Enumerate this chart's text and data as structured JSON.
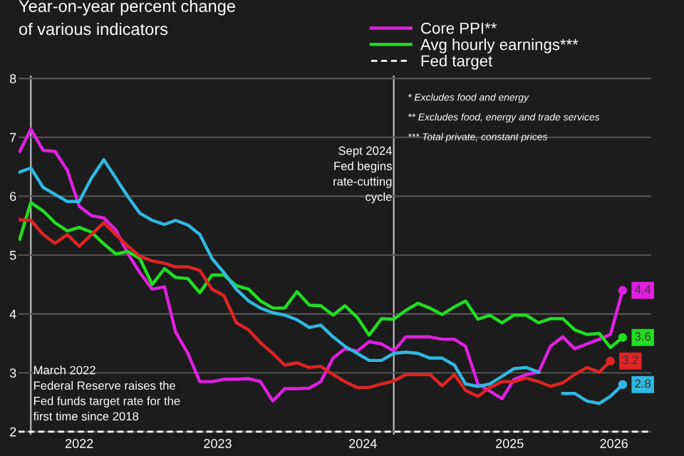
{
  "chart_data": {
    "type": "line",
    "title": "Year-on-year percent change\nof various indicators",
    "x": [
      "2022-02",
      "2022-03",
      "2022-04",
      "2022-05",
      "2022-06",
      "2022-07",
      "2022-08",
      "2022-09",
      "2022-10",
      "2022-11",
      "2022-12",
      "2023-01",
      "2023-02",
      "2023-03",
      "2023-04",
      "2023-05",
      "2023-06",
      "2023-07",
      "2023-08",
      "2023-09",
      "2023-10",
      "2023-11",
      "2023-12",
      "2024-01",
      "2024-02",
      "2024-03",
      "2024-04",
      "2024-05",
      "2024-06",
      "2024-07",
      "2024-08",
      "2024-09",
      "2024-10",
      "2024-11",
      "2024-12",
      "2025-01",
      "2025-02",
      "2025-03",
      "2025-04",
      "2025-05",
      "2025-06",
      "2025-07",
      "2025-08",
      "2025-09",
      "2025-10",
      "2025-11",
      "2025-12",
      "2026-01",
      "2026-02",
      "2026-03",
      "2026-04"
    ],
    "series": [
      {
        "name": "Core PPI**",
        "color": "#e020e0",
        "x": [
          "2022-02",
          "2022-03",
          "2022-04",
          "2022-05",
          "2022-06",
          "2022-07",
          "2022-08",
          "2022-09",
          "2022-10",
          "2022-11",
          "2022-12",
          "2023-01",
          "2023-02",
          "2023-03",
          "2023-04",
          "2023-05",
          "2023-06",
          "2023-07",
          "2023-08",
          "2023-09",
          "2023-10",
          "2023-11",
          "2023-12",
          "2024-01",
          "2024-02",
          "2024-03",
          "2024-04",
          "2024-05",
          "2024-06",
          "2024-07",
          "2024-08",
          "2024-09",
          "2024-10",
          "2024-12",
          "2025-01",
          "2025-02",
          "2025-03",
          "2025-04",
          "2025-05",
          "2025-06",
          "2025-07",
          "2025-08",
          "2025-09",
          "2025-10",
          "2025-11",
          "2025-12",
          "2026-01",
          "2026-02",
          "2026-03",
          "2026-04"
        ],
        "values": [
          6.76,
          7.14,
          6.78,
          6.76,
          6.44,
          5.83,
          5.67,
          5.63,
          5.43,
          5.02,
          4.7,
          4.42,
          4.46,
          3.69,
          3.33,
          2.85,
          2.85,
          2.89,
          2.89,
          2.9,
          2.85,
          2.52,
          2.73,
          2.73,
          2.74,
          2.85,
          3.25,
          3.41,
          3.37,
          3.53,
          3.49,
          3.37,
          3.61,
          3.61,
          3.57,
          3.57,
          3.45,
          2.81,
          2.69,
          2.56,
          2.89,
          2.97,
          3.01,
          3.45,
          3.61,
          3.41,
          3.49,
          3.57,
          3.65,
          4.4
        ],
        "value_labels": [
          null,
          null,
          null,
          null,
          null,
          null,
          null,
          null,
          null,
          null,
          null,
          null,
          null,
          null,
          null,
          null,
          null,
          null,
          null,
          null,
          null,
          null,
          null,
          null,
          null,
          null,
          null,
          null,
          null,
          null,
          null,
          null,
          null,
          null,
          null,
          null,
          null,
          null,
          null,
          null,
          null,
          null,
          null,
          null,
          null,
          null,
          null,
          null,
          null,
          "4.4"
        ]
      },
      {
        "name": "Avg hourly earnings***",
        "color": "#22dd22",
        "values": [
          5.27,
          5.89,
          5.75,
          5.55,
          5.41,
          5.47,
          5.39,
          5.19,
          5.02,
          5.06,
          4.94,
          4.5,
          4.77,
          4.62,
          4.6,
          4.36,
          4.66,
          4.66,
          4.48,
          4.42,
          4.22,
          4.1,
          4.1,
          4.38,
          4.15,
          4.14,
          3.98,
          4.14,
          3.94,
          3.64,
          3.92,
          3.91,
          4.06,
          4.18,
          4.1,
          3.99,
          4.12,
          4.22,
          3.91,
          3.98,
          3.85,
          3.98,
          3.98,
          3.85,
          3.92,
          3.92,
          3.73,
          3.65,
          3.67,
          3.43,
          3.6
        ],
        "value_labels": [
          null,
          null,
          null,
          null,
          null,
          null,
          null,
          null,
          null,
          null,
          null,
          null,
          null,
          null,
          null,
          null,
          null,
          null,
          null,
          null,
          null,
          null,
          null,
          null,
          null,
          null,
          null,
          null,
          null,
          null,
          null,
          null,
          null,
          null,
          null,
          null,
          null,
          null,
          null,
          null,
          null,
          null,
          null,
          null,
          null,
          null,
          null,
          null,
          null,
          null,
          "3.6"
        ]
      },
      {
        "color": "#e02424",
        "values": [
          5.6,
          5.59,
          5.35,
          5.2,
          5.35,
          5.15,
          5.35,
          5.55,
          5.35,
          5.15,
          4.98,
          4.9,
          4.86,
          4.8,
          4.8,
          4.74,
          4.42,
          4.31,
          3.85,
          3.73,
          3.51,
          3.33,
          3.13,
          3.17,
          3.09,
          3.11,
          2.97,
          2.85,
          2.75,
          2.75,
          2.81,
          2.86,
          2.97,
          2.97,
          2.97,
          2.78,
          2.97,
          2.7,
          2.6,
          2.75,
          2.85,
          2.85,
          2.91,
          2.85,
          2.77,
          2.83,
          2.97,
          3.09,
          3.01,
          3.2,
          null
        ],
        "value_labels": [
          null,
          null,
          null,
          null,
          null,
          null,
          null,
          null,
          null,
          null,
          null,
          null,
          null,
          null,
          null,
          null,
          null,
          null,
          null,
          null,
          null,
          null,
          null,
          null,
          null,
          null,
          null,
          null,
          null,
          null,
          null,
          null,
          null,
          null,
          null,
          null,
          null,
          null,
          null,
          null,
          null,
          null,
          null,
          null,
          null,
          null,
          null,
          null,
          null,
          "3.2",
          null
        ]
      },
      {
        "color": "#30b8e0",
        "values": [
          6.41,
          6.48,
          6.15,
          6.03,
          5.91,
          5.91,
          6.31,
          6.62,
          6.31,
          5.99,
          5.71,
          5.59,
          5.52,
          5.59,
          5.51,
          5.35,
          4.94,
          4.7,
          4.42,
          4.22,
          4.1,
          4.02,
          3.98,
          3.9,
          3.77,
          3.81,
          3.61,
          3.45,
          3.33,
          3.21,
          3.21,
          3.33,
          3.35,
          3.33,
          3.25,
          3.25,
          3.13,
          2.81,
          2.77,
          2.81,
          2.94,
          3.07,
          3.09,
          3.01,
          null,
          2.65,
          2.65,
          2.52,
          2.48,
          2.6,
          2.8
        ],
        "value_labels": [
          null,
          null,
          null,
          null,
          null,
          null,
          null,
          null,
          null,
          null,
          null,
          null,
          null,
          null,
          null,
          null,
          null,
          null,
          null,
          null,
          null,
          null,
          null,
          null,
          null,
          null,
          null,
          null,
          null,
          null,
          null,
          null,
          null,
          null,
          null,
          null,
          null,
          null,
          null,
          null,
          null,
          null,
          null,
          null,
          null,
          null,
          null,
          null,
          null,
          null,
          "2.8"
        ]
      }
    ],
    "xlim": [
      "2022-01-29",
      "2026-06-12"
    ],
    "xticks": [
      {
        "value": "2022-07",
        "label": "2022"
      },
      {
        "value": "2023-06-15",
        "label": "2023"
      },
      {
        "value": "2024-06-15",
        "label": "2024"
      },
      {
        "value": "2025-06-20",
        "label": "2025"
      },
      {
        "value": "2026-03-10",
        "label": "2026"
      }
    ],
    "ylim": [
      1.95,
      8.05
    ],
    "yticks": [
      2,
      3,
      4,
      5,
      6,
      7,
      8
    ],
    "grid": "y",
    "legend": "top right",
    "ref_lines": [
      {
        "axis": "x",
        "value": "2022-03",
        "label": "March 2022\nFederal Reserve raises the\nFed funds target rate for the\nfirst time since 2018",
        "color": "#bbbbbb"
      },
      {
        "axis": "x",
        "value": "2024-09",
        "label": "Sept 2024\nFed begins\nrate-cutting\ncycle",
        "color": "#bbbbbb"
      },
      {
        "axis": "y",
        "value": 2,
        "label": "Fed target",
        "color": "#ffffff",
        "line_style": "dashed"
      }
    ],
    "annotations": [
      "* Excludes food and energy",
      "** Excludes food, energy and trade services",
      "*** Total private, constant prices"
    ]
  }
}
